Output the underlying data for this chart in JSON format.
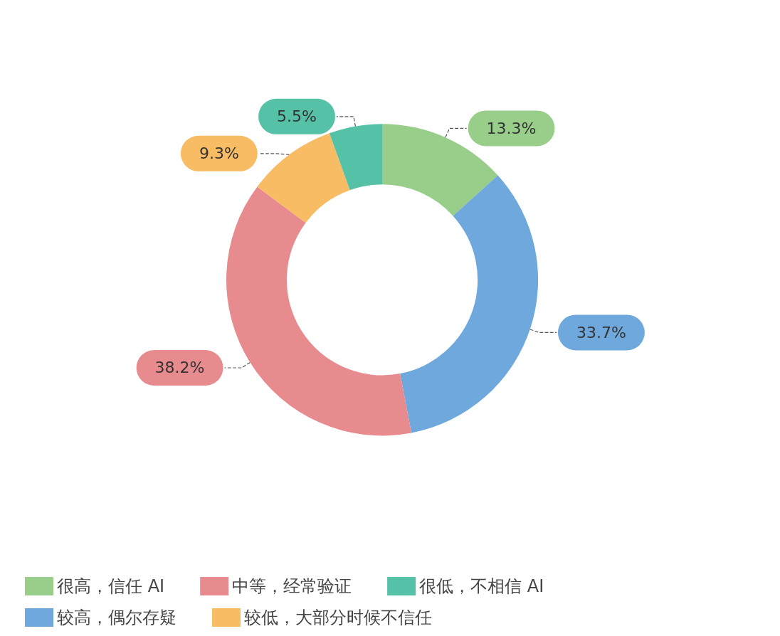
{
  "chart_data": {
    "type": "donut",
    "categories": [
      "很高，信任 AI",
      "较高，偶尔存疑",
      "中等，经常验证",
      "较低，大部分时候不信任",
      "很低，不相信 AI"
    ],
    "values": [
      13.3,
      33.7,
      38.2,
      9.3,
      5.5
    ],
    "value_labels": [
      "13.3%",
      "33.7%",
      "38.2%",
      "9.3%",
      "5.5%"
    ],
    "colors": [
      "#98cd8a",
      "#6ea8dc",
      "#e78b8f",
      "#f7bc64",
      "#55c2a7"
    ],
    "legend": "bottom"
  }
}
